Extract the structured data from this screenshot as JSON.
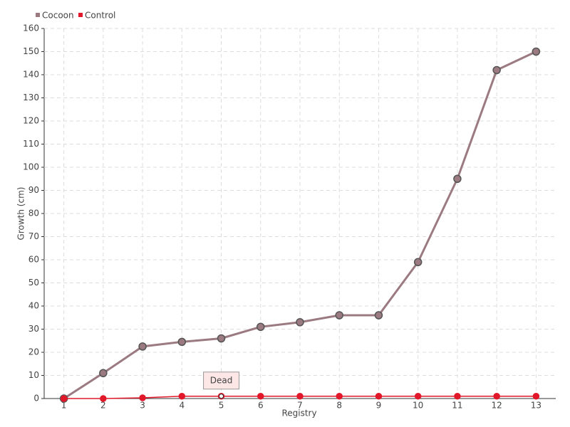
{
  "chart_data": {
    "type": "line",
    "x_label": "Registry",
    "y_label": "Growth (cm)",
    "categories": [
      "1",
      "2",
      "3",
      "4",
      "5",
      "6",
      "7",
      "8",
      "9",
      "10",
      "11",
      "12",
      "13"
    ],
    "series": [
      {
        "name": "Cocoon",
        "color": "#9b7a82",
        "values": [
          0,
          11,
          22.5,
          24.5,
          26,
          31,
          33,
          36,
          36,
          59,
          95,
          142,
          150
        ]
      },
      {
        "name": "Control",
        "color": "#e0182a",
        "values": [
          0,
          0,
          0.3,
          1,
          1,
          1,
          1,
          1,
          1,
          1,
          1,
          1,
          1
        ]
      }
    ],
    "annotations": [
      {
        "text": "Dead",
        "x": "5",
        "y": 1
      }
    ],
    "ylim": [
      0,
      160
    ],
    "yticks": [
      0,
      10,
      20,
      30,
      40,
      50,
      60,
      70,
      80,
      90,
      100,
      110,
      120,
      130,
      140,
      150,
      160
    ],
    "grid": true,
    "legend": "top-left"
  }
}
